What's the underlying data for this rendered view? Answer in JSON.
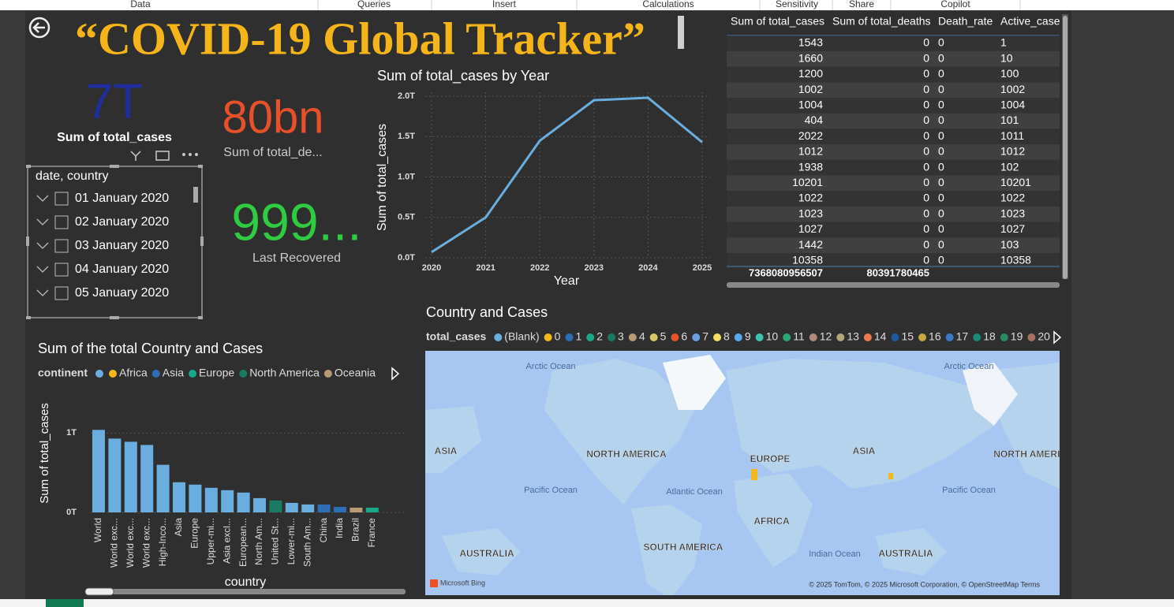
{
  "ribbon": [
    "Data",
    "Queries",
    "Insert",
    "Calculations",
    "Sensitivity",
    "Share",
    "Copilot"
  ],
  "title": "“COVID-19 Global Tracker”",
  "cards": [
    {
      "value": "7T",
      "label": "Sum of total_cases"
    },
    {
      "value": "80bn",
      "label": "Sum of total_de..."
    },
    {
      "value": "999...",
      "label": "Last Recovered"
    }
  ],
  "slicer": {
    "header": "date, country",
    "items": [
      "01 January 2020",
      "02 January 2020",
      "03 January 2020",
      "04 January 2020",
      "05 January 2020"
    ]
  },
  "chart_data": [
    {
      "type": "line",
      "title": "Sum of total_cases by Year",
      "x_label": "Year",
      "y_label": "Sum of total_cases",
      "categories": [
        "2020",
        "2021",
        "2022",
        "2023",
        "2024",
        "2025"
      ],
      "series": [
        {
          "name": "Sum of total_cases",
          "color": "#6aaee0",
          "values": [
            0.07,
            0.5,
            1.45,
            1.95,
            1.98,
            1.43
          ]
        }
      ],
      "ylim": [
        0,
        2
      ],
      "yticks": [
        {
          "value": 0,
          "label": "0.0T"
        },
        {
          "value": 0.5,
          "label": "0.5T"
        },
        {
          "value": 1,
          "label": "1.0T"
        },
        {
          "value": 1.5,
          "label": "1.5T"
        },
        {
          "value": 2,
          "label": "2.0T"
        }
      ],
      "grid": true
    },
    {
      "type": "bar",
      "title": "Sum of the total Country and Cases",
      "x_label": "country",
      "y_label": "Sum of total_cases",
      "legend_title": "continent",
      "legend": [
        {
          "name": null,
          "color": "#6aaee0"
        },
        {
          "name": "Africa",
          "color": "#f2b81c"
        },
        {
          "name": "Asia",
          "color": "#2d6fb7"
        },
        {
          "name": "Europe",
          "color": "#19a88a"
        },
        {
          "name": "North America",
          "color": "#1a7a64"
        },
        {
          "name": "Oceania",
          "color": "#b89a74"
        }
      ],
      "categories": [
        "World",
        "World exc...",
        "World exc...",
        "World exc...",
        "High-Inco...",
        "Asia",
        "Europe",
        "Upper-mi...",
        "Asia excl...",
        "European...",
        "North Am...",
        "United St...",
        "Lower-mi...",
        "South Am...",
        "China",
        "India",
        "Brazil",
        "France"
      ],
      "values": [
        1.04,
        0.93,
        0.89,
        0.85,
        0.6,
        0.38,
        0.35,
        0.31,
        0.28,
        0.25,
        0.18,
        0.15,
        0.12,
        0.1,
        0.1,
        0.07,
        0.06,
        0.06
      ],
      "colors": [
        "#6aaee0",
        "#6aaee0",
        "#6aaee0",
        "#6aaee0",
        "#6aaee0",
        "#6aaee0",
        "#6aaee0",
        "#6aaee0",
        "#6aaee0",
        "#6aaee0",
        "#6aaee0",
        "#1a7a64",
        "#6aaee0",
        "#6aaee0",
        "#2d6fb7",
        "#2d6fb7",
        "#b89a74",
        "#19a88a"
      ],
      "ylim": [
        0,
        1.5
      ],
      "yticks": [
        {
          "value": 0,
          "label": "0T"
        },
        {
          "value": 1,
          "label": "1T"
        }
      ],
      "grid": true
    }
  ],
  "table": {
    "columns": [
      "Sum of total_cases",
      "Sum of total_deaths",
      "Death_rate",
      "Active_case"
    ],
    "rows": [
      [
        1543,
        0,
        0,
        1
      ],
      [
        1660,
        0,
        0,
        10
      ],
      [
        1200,
        0,
        0,
        100
      ],
      [
        1002,
        0,
        0,
        1002
      ],
      [
        1004,
        0,
        0,
        1004
      ],
      [
        404,
        0,
        0,
        101
      ],
      [
        2022,
        0,
        0,
        1011
      ],
      [
        1012,
        0,
        0,
        1012
      ],
      [
        1938,
        0,
        0,
        102
      ],
      [
        10201,
        0,
        0,
        10201
      ],
      [
        1022,
        0,
        0,
        1022
      ],
      [
        1023,
        0,
        0,
        1023
      ],
      [
        1027,
        0,
        0,
        1027
      ],
      [
        1442,
        0,
        0,
        103
      ],
      [
        10358,
        0,
        0,
        10358
      ]
    ],
    "totals": [
      7368080956507,
      80391780465
    ]
  },
  "map": {
    "title": "Country and Cases",
    "legend_title": "total_cases",
    "legend": [
      {
        "name": "(Blank)",
        "color": "#6aaee0"
      },
      {
        "name": "0",
        "color": "#f2b81c"
      },
      {
        "name": "1",
        "color": "#2d6fb7"
      },
      {
        "name": "2",
        "color": "#19a88a"
      },
      {
        "name": "3",
        "color": "#1a7a64"
      },
      {
        "name": "4",
        "color": "#b89a74"
      },
      {
        "name": "5",
        "color": "#d9c66a"
      },
      {
        "name": "6",
        "color": "#e8532a"
      },
      {
        "name": "7",
        "color": "#6a9fe0"
      },
      {
        "name": "8",
        "color": "#f5dd63"
      },
      {
        "name": "9",
        "color": "#5aa9f0"
      },
      {
        "name": "10",
        "color": "#3fc0b0"
      },
      {
        "name": "11",
        "color": "#2aa878"
      },
      {
        "name": "12",
        "color": "#b38a7a"
      },
      {
        "name": "13",
        "color": "#b5a57a"
      },
      {
        "name": "14",
        "color": "#f07850"
      },
      {
        "name": "15",
        "color": "#1e5aa0"
      },
      {
        "name": "16",
        "color": "#c9a840"
      },
      {
        "name": "17",
        "color": "#3a78c8"
      },
      {
        "name": "18",
        "color": "#1a8a78"
      },
      {
        "name": "19",
        "color": "#2a8a60"
      },
      {
        "name": "20",
        "color": "#a87060"
      }
    ],
    "labels": [
      "Arctic Ocean",
      "Arctic Ocean",
      "ASIA",
      "NORTH AMERICA",
      "EUROPE",
      "ASIA",
      "NORTH AMERICA",
      "Pacific Ocean",
      "Atlantic Ocean",
      "Pacific Ocean",
      "AFRICA",
      "SOUTH AMERICA",
      "Indian Ocean",
      "AUSTRALIA",
      "AUSTRALIA"
    ],
    "brand": "Microsoft Bing",
    "attribution": "© 2025 TomTom, © 2025 Microsoft Corporation, © OpenStreetMap  Terms"
  }
}
